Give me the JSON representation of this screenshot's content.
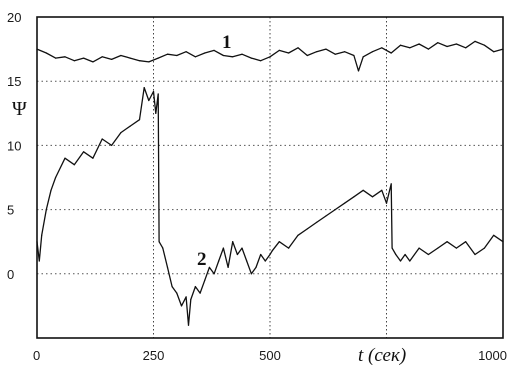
{
  "chart_data": {
    "type": "line",
    "xlabel": "t (сек)",
    "ylabel": "Ψ",
    "xlim": [
      0,
      1000
    ],
    "ylim": [
      -5,
      20
    ],
    "x_ticks": [
      0,
      250,
      500,
      1000
    ],
    "x_tick_labels": [
      "0",
      "250",
      "500",
      "1000"
    ],
    "y_ticks": [
      20,
      15,
      10,
      5,
      0
    ],
    "y_tick_labels": [
      "20",
      "15",
      "10",
      "5",
      "0"
    ],
    "v_gridlines": [
      250,
      500,
      750
    ],
    "h_gridlines": [
      15,
      10,
      5,
      0
    ],
    "grid": "dotted",
    "series": [
      {
        "label": "1",
        "x": [
          0,
          20,
          40,
          60,
          80,
          100,
          120,
          140,
          160,
          180,
          200,
          220,
          240,
          260,
          280,
          300,
          320,
          340,
          360,
          380,
          400,
          420,
          440,
          460,
          480,
          500,
          520,
          540,
          560,
          580,
          600,
          620,
          640,
          660,
          680,
          690,
          700,
          720,
          740,
          760,
          780,
          800,
          820,
          840,
          860,
          880,
          900,
          920,
          940,
          960,
          980,
          1000
        ],
        "y": [
          17.5,
          17.2,
          16.8,
          16.9,
          16.6,
          16.8,
          16.5,
          16.9,
          16.7,
          17.0,
          16.8,
          16.6,
          16.5,
          16.8,
          17.1,
          17.0,
          17.3,
          16.9,
          17.2,
          17.4,
          17.0,
          16.9,
          17.1,
          16.8,
          16.6,
          16.9,
          17.4,
          17.2,
          17.6,
          17.0,
          17.3,
          17.5,
          17.1,
          17.3,
          17.0,
          15.8,
          16.9,
          17.3,
          17.6,
          17.2,
          17.8,
          17.6,
          17.9,
          17.5,
          18.0,
          17.7,
          17.9,
          17.6,
          18.1,
          17.8,
          17.3,
          17.5
        ]
      },
      {
        "label": "2",
        "x": [
          0,
          5,
          10,
          20,
          30,
          40,
          60,
          80,
          100,
          120,
          140,
          160,
          180,
          200,
          220,
          230,
          240,
          250,
          255,
          260,
          262,
          270,
          280,
          290,
          300,
          310,
          320,
          325,
          330,
          340,
          350,
          360,
          370,
          380,
          390,
          400,
          410,
          420,
          430,
          440,
          450,
          460,
          470,
          480,
          490,
          500,
          505,
          520,
          540,
          560,
          580,
          600,
          620,
          640,
          660,
          680,
          700,
          720,
          740,
          750,
          760,
          762,
          770,
          780,
          790,
          800,
          820,
          840,
          860,
          880,
          900,
          920,
          940,
          960,
          980,
          1000
        ],
        "y": [
          2.5,
          1.0,
          3.0,
          5.0,
          6.5,
          7.5,
          9.0,
          8.5,
          9.5,
          9.0,
          10.5,
          10.0,
          11.0,
          11.5,
          12.0,
          14.5,
          13.5,
          14.2,
          12.5,
          14.0,
          2.5,
          2.0,
          0.5,
          -1.0,
          -1.5,
          -2.5,
          -1.8,
          -4.0,
          -2.0,
          -1.0,
          -1.5,
          -0.5,
          0.5,
          0.0,
          1.0,
          2.0,
          0.5,
          2.5,
          1.5,
          2.0,
          1.0,
          0.0,
          0.5,
          1.5,
          1.0,
          1.5,
          1.8,
          2.5,
          2.0,
          3.0,
          3.5,
          4.0,
          4.5,
          5.0,
          5.5,
          6.0,
          6.5,
          6.0,
          6.5,
          5.5,
          7.0,
          2.0,
          1.5,
          1.0,
          1.5,
          1.0,
          2.0,
          1.5,
          2.0,
          2.5,
          2.0,
          2.5,
          1.5,
          2.0,
          3.0,
          2.5
        ]
      }
    ],
    "annotations": [
      {
        "text": "1",
        "series": 0
      },
      {
        "text": "2",
        "series": 1
      }
    ]
  }
}
